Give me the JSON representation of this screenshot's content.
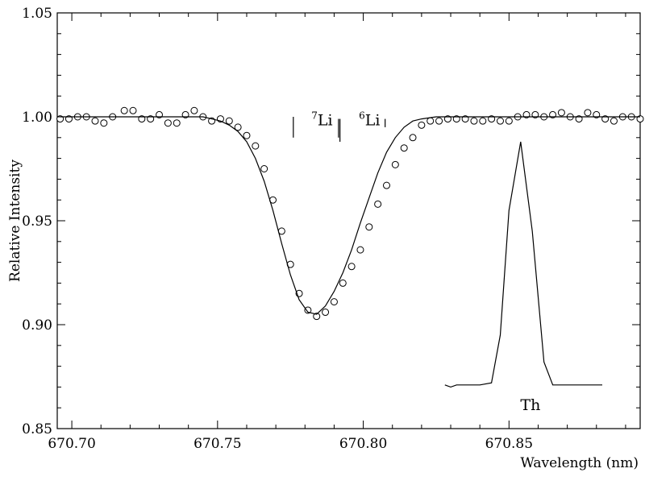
{
  "chart_data": {
    "type": "line",
    "xlabel": "Wavelength (nm)",
    "ylabel": "Relative Intensity",
    "xlim": [
      670.695,
      670.895
    ],
    "ylim": [
      0.85,
      1.05
    ],
    "x_ticks": [
      670.7,
      670.75,
      670.8,
      670.85
    ],
    "x_tick_labels": [
      "670.70",
      "670.75",
      "670.80",
      "670.85"
    ],
    "y_ticks": [
      0.85,
      0.9,
      0.95,
      1.0,
      1.05
    ],
    "y_tick_labels": [
      "0.85",
      "0.90",
      "0.95",
      "1.00",
      "1.05"
    ],
    "grid": false,
    "series": [
      {
        "name": "",
        "style": "open-circle",
        "x": [
          670.696,
          670.699,
          670.702,
          670.705,
          670.708,
          670.711,
          670.714,
          670.718,
          670.721,
          670.724,
          670.727,
          670.73,
          670.733,
          670.736,
          670.739,
          670.742,
          670.745,
          670.748,
          670.751,
          670.754,
          670.757,
          670.76,
          670.763,
          670.766,
          670.769,
          670.772,
          670.775,
          670.778,
          670.781,
          670.784,
          670.787,
          670.79,
          670.793,
          670.796,
          670.799,
          670.802,
          670.805,
          670.808,
          670.811,
          670.814,
          670.817,
          670.82,
          670.823,
          670.826,
          670.829,
          670.832,
          670.835,
          670.838,
          670.841,
          670.844,
          670.847,
          670.85,
          670.853,
          670.856,
          670.859,
          670.862,
          670.865,
          670.868,
          670.871,
          670.874,
          670.877,
          670.88,
          670.883,
          670.886,
          670.889,
          670.892,
          670.895
        ],
        "y": [
          0.999,
          0.999,
          1.0,
          1.0,
          0.998,
          0.997,
          1.0,
          1.003,
          1.003,
          0.999,
          0.999,
          1.001,
          0.997,
          0.997,
          1.001,
          1.003,
          1.0,
          0.998,
          0.999,
          0.998,
          0.995,
          0.991,
          0.986,
          0.975,
          0.96,
          0.945,
          0.929,
          0.915,
          0.907,
          0.904,
          0.906,
          0.911,
          0.92,
          0.928,
          0.936,
          0.947,
          0.958,
          0.967,
          0.977,
          0.985,
          0.99,
          0.996,
          0.998,
          0.998,
          0.999,
          0.999,
          0.999,
          0.998,
          0.998,
          0.999,
          0.998,
          0.998,
          1.0,
          1.001,
          1.001,
          1.0,
          1.001,
          1.002,
          1.0,
          0.999,
          1.002,
          1.001,
          0.999,
          0.998,
          1.0,
          1.0,
          0.999
        ]
      },
      {
        "name": "",
        "style": "solid-line",
        "x": [
          670.696,
          670.7,
          670.705,
          670.71,
          670.715,
          670.72,
          670.725,
          670.73,
          670.735,
          670.74,
          670.745,
          670.748,
          670.751,
          670.754,
          670.757,
          670.76,
          670.763,
          670.766,
          670.769,
          670.772,
          670.775,
          670.778,
          670.781,
          670.784,
          670.787,
          670.79,
          670.793,
          670.796,
          670.799,
          670.802,
          670.805,
          670.808,
          670.811,
          670.814,
          670.817,
          670.82,
          670.825,
          670.83,
          670.84,
          670.85,
          670.86,
          670.87,
          670.88,
          670.89,
          670.895
        ],
        "y": [
          1.0,
          1.0,
          1.0,
          1.0,
          1.0,
          1.0,
          1.0,
          1.0,
          1.0,
          1.0,
          1.0,
          0.999,
          0.998,
          0.996,
          0.993,
          0.988,
          0.98,
          0.969,
          0.955,
          0.939,
          0.924,
          0.912,
          0.906,
          0.905,
          0.909,
          0.916,
          0.925,
          0.936,
          0.949,
          0.961,
          0.973,
          0.983,
          0.99,
          0.995,
          0.998,
          0.999,
          1.0,
          1.0,
          1.0,
          1.0,
          1.0,
          1.0,
          1.0,
          1.0,
          1.0
        ]
      },
      {
        "name": "Th",
        "style": "solid-line",
        "x": [
          670.828,
          670.83,
          670.832,
          670.84,
          670.844,
          670.847,
          670.85,
          670.854,
          670.858,
          670.862,
          670.865,
          670.87,
          670.878,
          670.882
        ],
        "y": [
          0.871,
          0.87,
          0.871,
          0.871,
          0.872,
          0.895,
          0.955,
          0.988,
          0.945,
          0.882,
          0.871,
          0.871,
          0.871,
          0.871
        ]
      }
    ],
    "line_markers": [
      {
        "x": 670.776,
        "y_range": [
          0.99,
          1.0
        ]
      },
      {
        "x": 670.7915,
        "y_range": [
          0.99,
          0.999
        ]
      },
      {
        "x": 670.792,
        "y_range": [
          0.988,
          0.999
        ]
      },
      {
        "x": 670.8075,
        "y_range": [
          0.995,
          0.999
        ]
      }
    ],
    "annotations": [
      {
        "name": "li7",
        "sup": "7",
        "text": "Li",
        "x": 670.7822,
        "y": 0.996
      },
      {
        "name": "li6",
        "sup": "6",
        "text": "Li",
        "x": 670.7985,
        "y": 0.996
      },
      {
        "name": "th",
        "sup": "",
        "text": "Th",
        "x": 670.8539,
        "y": 0.859
      }
    ]
  }
}
